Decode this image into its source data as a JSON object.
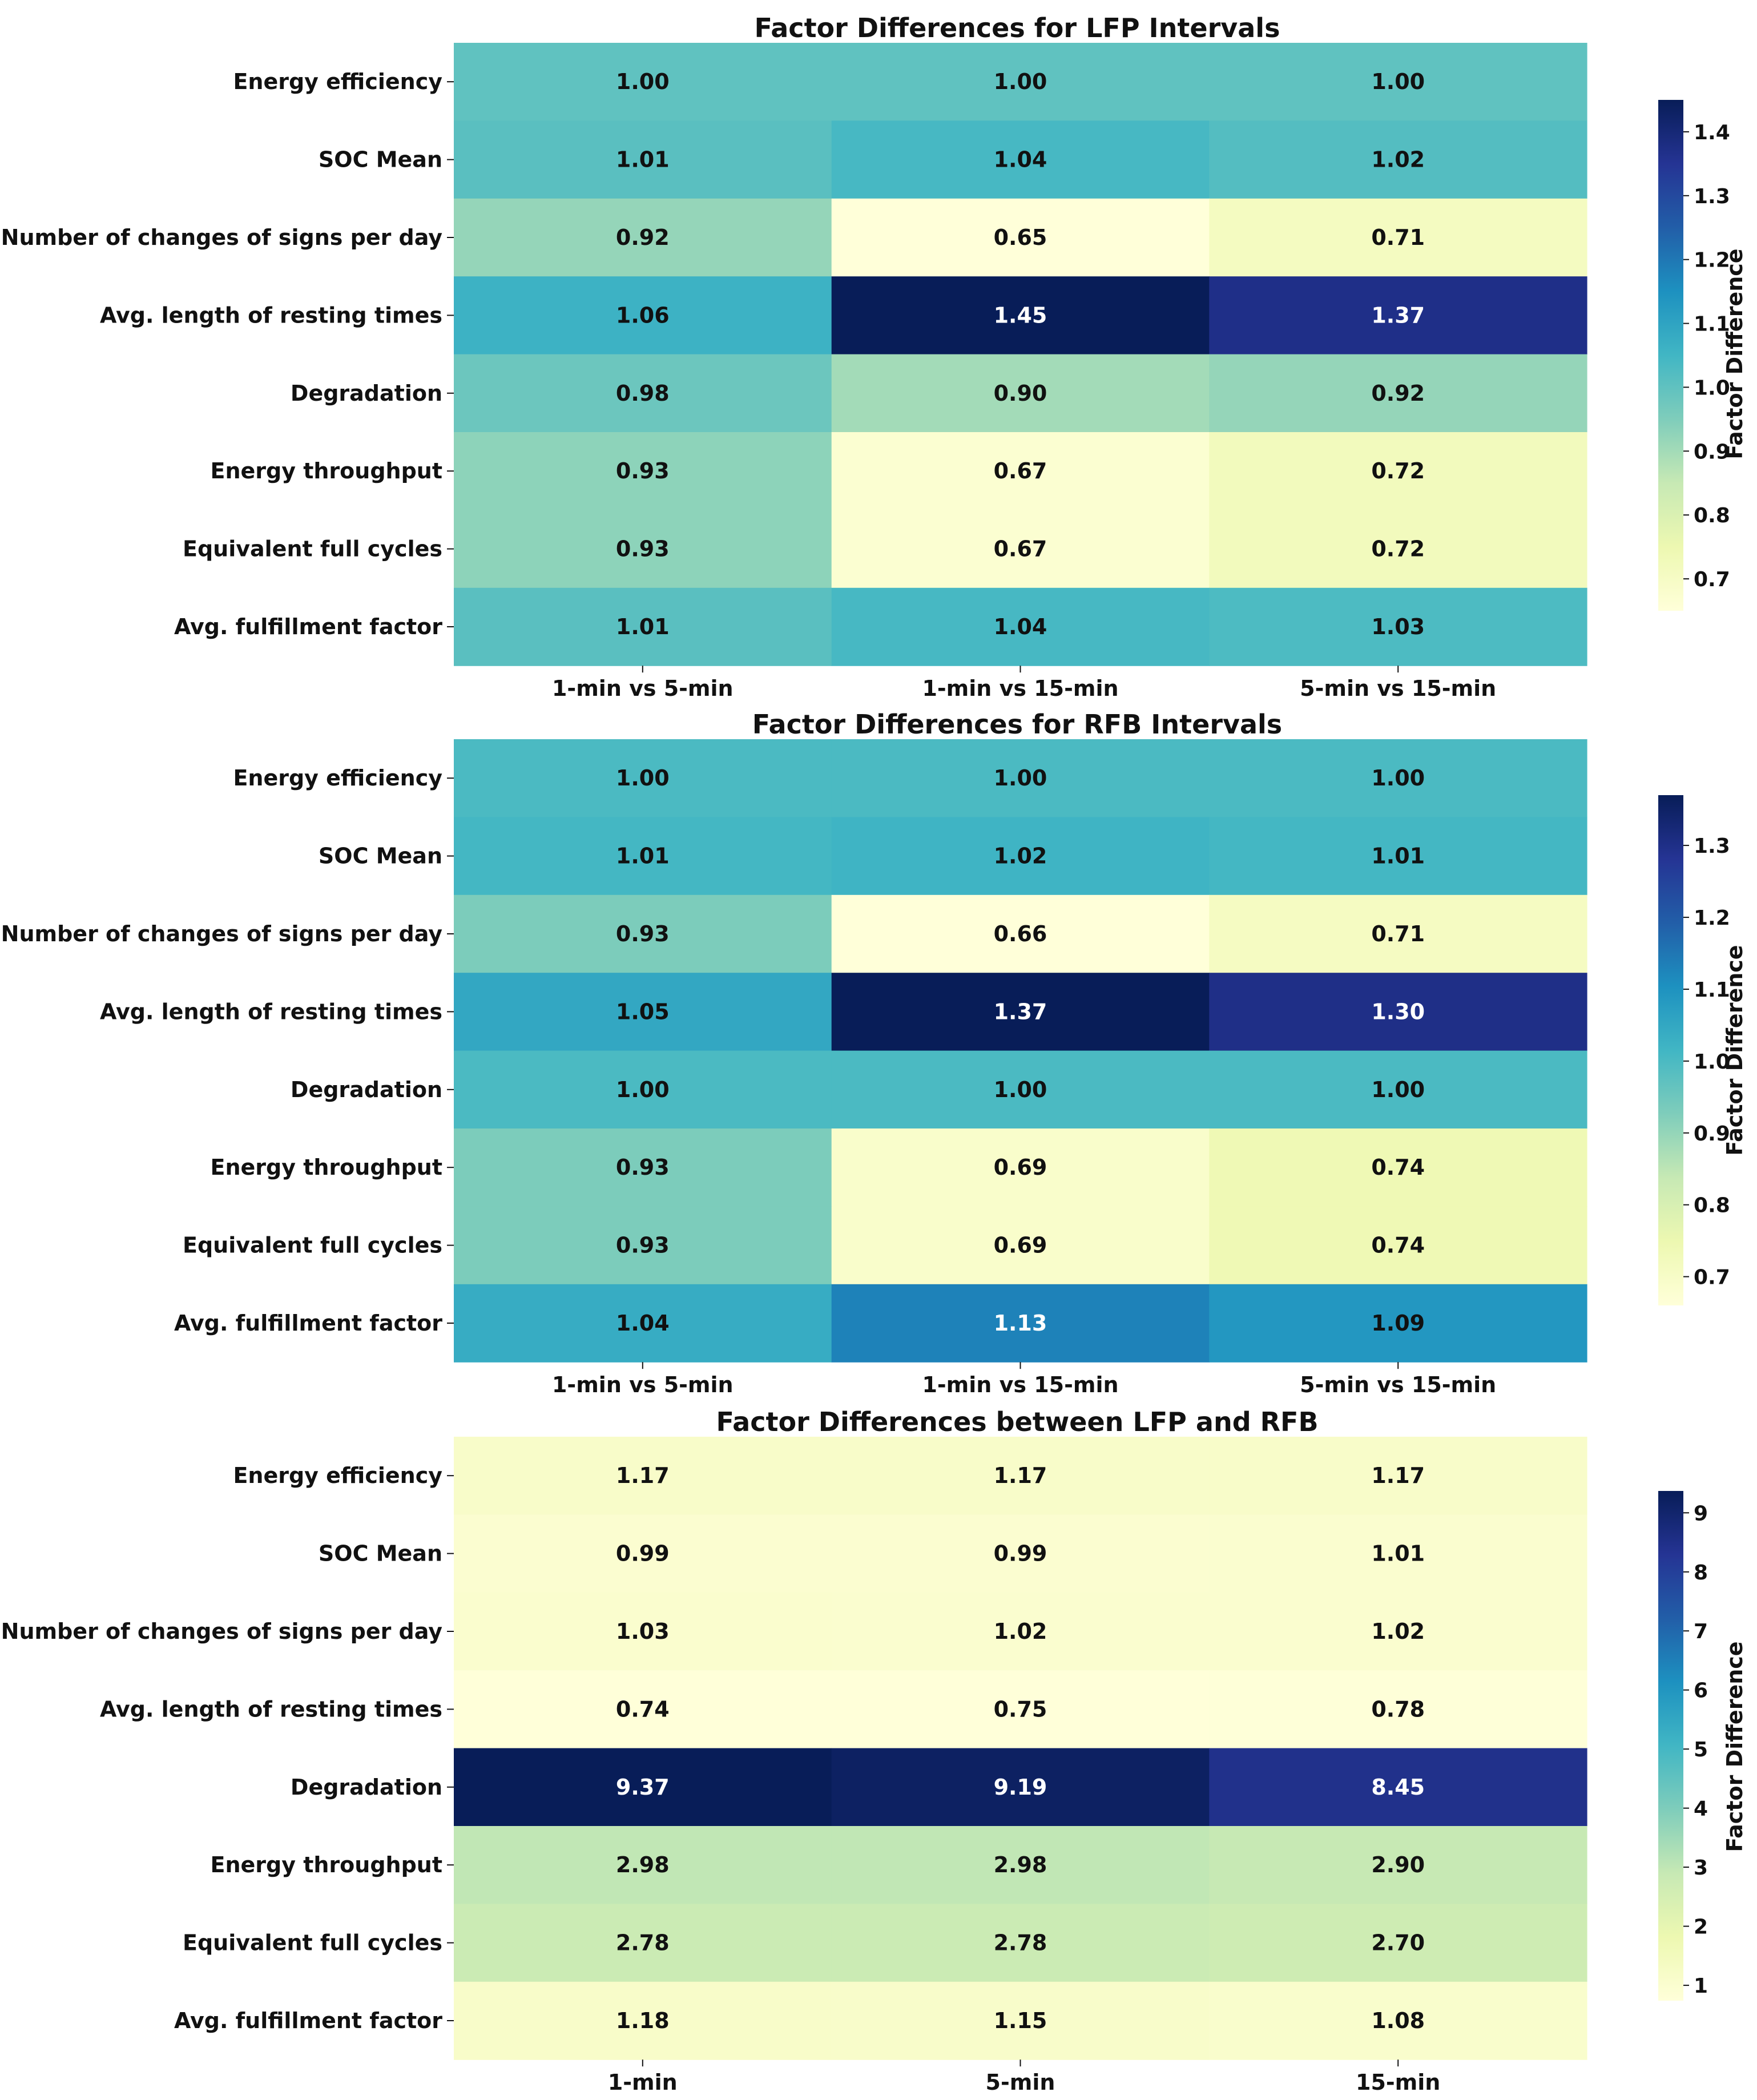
{
  "colormap": [
    "#ffffd9",
    "#edf8b1",
    "#c7e9b4",
    "#7fcdbb",
    "#41b6c4",
    "#1d91c0",
    "#225ea8",
    "#253494",
    "#081d58"
  ],
  "chart_data": [
    {
      "type": "heatmap",
      "title": "Factor Differences for LFP Intervals",
      "rows": [
        "Energy efficiency",
        "SOC Mean",
        "Number of changes of signs per day",
        "Avg. length of resting times",
        "Degradation",
        "Energy throughput",
        "Equivalent full cycles",
        "Avg. fulfillment factor"
      ],
      "columns": [
        "1-min vs 5-min",
        "1-min vs 15-min",
        "5-min vs 15-min"
      ],
      "values": [
        [
          1.0,
          1.0,
          1.0
        ],
        [
          1.01,
          1.04,
          1.02
        ],
        [
          0.92,
          0.65,
          0.71
        ],
        [
          1.06,
          1.45,
          1.37
        ],
        [
          0.98,
          0.9,
          0.92
        ],
        [
          0.93,
          0.67,
          0.72
        ],
        [
          0.93,
          0.67,
          0.72
        ],
        [
          1.01,
          1.04,
          1.03
        ]
      ],
      "value_labels": [
        [
          "1.00",
          "1.00",
          "1.00"
        ],
        [
          "1.01",
          "1.04",
          "1.02"
        ],
        [
          "0.92",
          "0.65",
          "0.71"
        ],
        [
          "1.06",
          "1.45",
          "1.37"
        ],
        [
          "0.98",
          "0.90",
          "0.92"
        ],
        [
          "0.93",
          "0.67",
          "0.72"
        ],
        [
          "0.93",
          "0.67",
          "0.72"
        ],
        [
          "1.01",
          "1.04",
          "1.03"
        ]
      ],
      "colorbar": {
        "label": "Factor Difference",
        "range": [
          0.65,
          1.45
        ],
        "ticks": [
          0.7,
          0.8,
          0.9,
          1.0,
          1.1,
          1.2,
          1.3,
          1.4
        ],
        "tick_labels": [
          "0.7",
          "0.8",
          "0.9",
          "1.0",
          "1.1",
          "1.2",
          "1.3",
          "1.4"
        ]
      }
    },
    {
      "type": "heatmap",
      "title": "Factor Differences for RFB Intervals",
      "rows": [
        "Energy efficiency",
        "SOC Mean",
        "Number of changes of signs per day",
        "Avg. length of resting times",
        "Degradation",
        "Energy throughput",
        "Equivalent full cycles",
        "Avg. fulfillment factor"
      ],
      "columns": [
        "1-min vs 5-min",
        "1-min vs 15-min",
        "5-min vs 15-min"
      ],
      "values": [
        [
          1.0,
          1.0,
          1.0
        ],
        [
          1.01,
          1.02,
          1.01
        ],
        [
          0.93,
          0.66,
          0.71
        ],
        [
          1.05,
          1.37,
          1.3
        ],
        [
          1.0,
          1.0,
          1.0
        ],
        [
          0.93,
          0.69,
          0.74
        ],
        [
          0.93,
          0.69,
          0.74
        ],
        [
          1.04,
          1.13,
          1.09
        ]
      ],
      "value_labels": [
        [
          "1.00",
          "1.00",
          "1.00"
        ],
        [
          "1.01",
          "1.02",
          "1.01"
        ],
        [
          "0.93",
          "0.66",
          "0.71"
        ],
        [
          "1.05",
          "1.37",
          "1.30"
        ],
        [
          "1.00",
          "1.00",
          "1.00"
        ],
        [
          "0.93",
          "0.69",
          "0.74"
        ],
        [
          "0.93",
          "0.69",
          "0.74"
        ],
        [
          "1.04",
          "1.13",
          "1.09"
        ]
      ],
      "colorbar": {
        "label": "Factor Difference",
        "range": [
          0.66,
          1.37
        ],
        "ticks": [
          0.7,
          0.8,
          0.9,
          1.0,
          1.1,
          1.2,
          1.3
        ],
        "tick_labels": [
          "0.7",
          "0.8",
          "0.9",
          "1.0",
          "1.1",
          "1.2",
          "1.3"
        ]
      }
    },
    {
      "type": "heatmap",
      "title": "Factor Differences between LFP and RFB",
      "rows": [
        "Energy efficiency",
        "SOC Mean",
        "Number of changes of signs per day",
        "Avg. length of resting times",
        "Degradation",
        "Energy throughput",
        "Equivalent full cycles",
        "Avg. fulfillment factor"
      ],
      "columns": [
        "1-min",
        "5-min",
        "15-min"
      ],
      "values": [
        [
          1.17,
          1.17,
          1.17
        ],
        [
          0.99,
          0.99,
          1.01
        ],
        [
          1.03,
          1.02,
          1.02
        ],
        [
          0.74,
          0.75,
          0.78
        ],
        [
          9.37,
          9.19,
          8.45
        ],
        [
          2.98,
          2.98,
          2.9
        ],
        [
          2.78,
          2.78,
          2.7
        ],
        [
          1.18,
          1.15,
          1.08
        ]
      ],
      "value_labels": [
        [
          "1.17",
          "1.17",
          "1.17"
        ],
        [
          "0.99",
          "0.99",
          "1.01"
        ],
        [
          "1.03",
          "1.02",
          "1.02"
        ],
        [
          "0.74",
          "0.75",
          "0.78"
        ],
        [
          "9.37",
          "9.19",
          "8.45"
        ],
        [
          "2.98",
          "2.98",
          "2.90"
        ],
        [
          "2.78",
          "2.78",
          "2.70"
        ],
        [
          "1.18",
          "1.15",
          "1.08"
        ]
      ],
      "colorbar": {
        "label": "Factor Difference",
        "range": [
          0.74,
          9.37
        ],
        "ticks": [
          1,
          2,
          3,
          4,
          5,
          6,
          7,
          8,
          9
        ],
        "tick_labels": [
          "1",
          "2",
          "3",
          "4",
          "5",
          "6",
          "7",
          "8",
          "9"
        ]
      }
    }
  ]
}
